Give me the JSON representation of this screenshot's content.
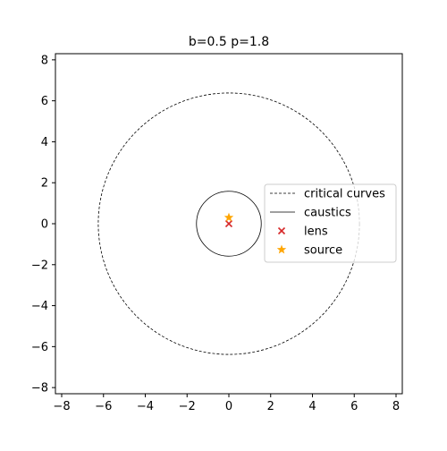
{
  "chart_data": {
    "type": "line",
    "title": "b=0.5 p=1.8",
    "xlim": [
      -8.3,
      8.3
    ],
    "ylim": [
      -8.3,
      8.3
    ],
    "x_ticks": [
      -8,
      -6,
      -4,
      -2,
      0,
      2,
      4,
      6,
      8
    ],
    "y_ticks": [
      -8,
      -6,
      -4,
      -2,
      0,
      2,
      4,
      6,
      8
    ],
    "grid": false,
    "legend_position": "center-right",
    "series": [
      {
        "name": "critical curves",
        "kind": "circle",
        "center": [
          0,
          0
        ],
        "radius": 6.25,
        "line_style": "dashed",
        "color": "#000000"
      },
      {
        "name": "caustics",
        "kind": "circle",
        "center": [
          0,
          0
        ],
        "radius": 1.55,
        "line_style": "solid",
        "color": "#000000"
      },
      {
        "name": "lens",
        "kind": "marker",
        "marker": "x",
        "color": "#d62728",
        "points": [
          [
            0,
            0
          ]
        ]
      },
      {
        "name": "source",
        "kind": "marker",
        "marker": "star",
        "color": "#ffa500",
        "points": [
          [
            0,
            0.3
          ]
        ]
      }
    ],
    "legend": [
      "critical curves",
      "caustics",
      "lens",
      "source"
    ]
  }
}
